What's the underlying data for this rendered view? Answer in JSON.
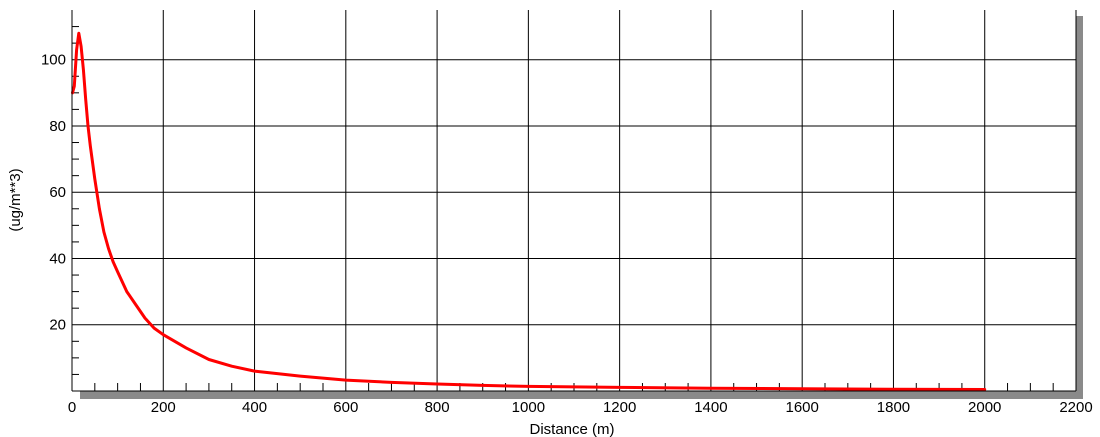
{
  "chart_data": {
    "type": "line",
    "xlabel": "Distance (m)",
    "ylabel": "(ug/m**3)",
    "xlim": [
      0,
      2200
    ],
    "ylim": [
      0,
      115
    ],
    "x_ticks": [
      "0",
      "200",
      "400",
      "600",
      "800",
      "1000",
      "1200",
      "1400",
      "1600",
      "1800",
      "2000",
      "2200"
    ],
    "y_ticks": [
      "20",
      "40",
      "60",
      "80",
      "100"
    ],
    "x_tick_values": [
      0,
      200,
      400,
      600,
      800,
      1000,
      1200,
      1400,
      1600,
      1800,
      2000,
      2200
    ],
    "y_tick_values": [
      20,
      40,
      60,
      80,
      100
    ],
    "grid": true,
    "series": [
      {
        "color": "#ff0000",
        "x": [
          1,
          5,
          10,
          15,
          20,
          25,
          30,
          35,
          40,
          50,
          60,
          70,
          80,
          90,
          100,
          120,
          140,
          160,
          180,
          200,
          250,
          300,
          350,
          400,
          500,
          600,
          700,
          800,
          900,
          1000,
          1200,
          1400,
          1600,
          1800,
          2000
        ],
        "y": [
          90,
          92,
          103,
          108,
          104,
          97,
          88,
          80,
          74,
          64,
          55,
          48,
          43,
          39,
          36,
          30,
          26,
          22,
          19,
          17,
          13,
          9.5,
          7.5,
          6,
          4.5,
          3.3,
          2.6,
          2.1,
          1.7,
          1.4,
          1.1,
          0.8,
          0.7,
          0.5,
          0.45
        ]
      }
    ]
  }
}
